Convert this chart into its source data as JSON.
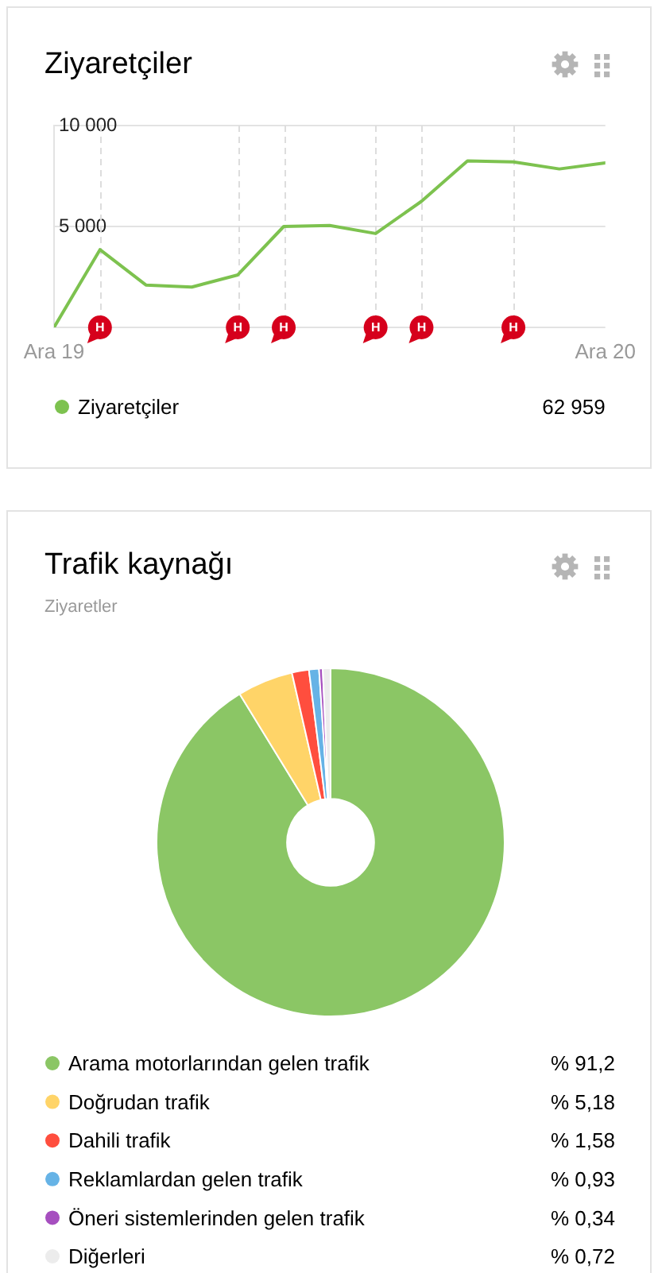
{
  "chart_data": [
    {
      "type": "line",
      "title": "Ziyaretçiler",
      "x": [
        "2019-12",
        "2020-01",
        "2020-02",
        "2020-03",
        "2020-04",
        "2020-05",
        "2020-06",
        "2020-07",
        "2020-08",
        "2020-09",
        "2020-10",
        "2020-11",
        "2020-12"
      ],
      "series": [
        {
          "name": "Ziyaretçiler",
          "color": "#7dc24f",
          "values": [
            0,
            3850,
            2100,
            2000,
            2600,
            5000,
            5050,
            4650,
            6250,
            8250,
            8200,
            7850,
            8150
          ]
        }
      ],
      "xlim": [
        "2019-12",
        "2020-12"
      ],
      "xticks": [
        {
          "value": "2019-12",
          "label": "Ara 19"
        },
        {
          "value": "2020-12",
          "label": "Ara 20"
        }
      ],
      "ylim": [
        0,
        10000
      ],
      "yticks": [
        {
          "value": 0,
          "label": null
        },
        {
          "value": 5000,
          "label": "5 000"
        },
        {
          "value": 10000,
          "label": "10 000"
        }
      ],
      "grid": "y",
      "legend": "bottom",
      "annotations": [
        "62 959"
      ],
      "ref_lines": [
        {
          "axis": "x",
          "value": "2020-01",
          "label": "H",
          "color": "#dddddd",
          "line_style": "dashed"
        },
        {
          "axis": "x",
          "value": "2020-04",
          "label": "H",
          "color": "#dddddd",
          "line_style": "dashed"
        },
        {
          "axis": "x",
          "value": "2020-05",
          "label": "H",
          "color": "#dddddd",
          "line_style": "dashed"
        },
        {
          "axis": "x",
          "value": "2020-07",
          "label": "H",
          "color": "#dddddd",
          "line_style": "dashed"
        },
        {
          "axis": "x",
          "value": "2020-08",
          "label": "H",
          "color": "#dddddd",
          "line_style": "dashed"
        },
        {
          "axis": "x",
          "value": "2020-10",
          "label": "H",
          "color": "#dddddd",
          "line_style": "dashed"
        }
      ]
    },
    {
      "type": "donut",
      "title": "Trafik kaynağı",
      "subtitle": "Ziyaretler",
      "categories": [
        "Arama motorlarından gelen trafik",
        "Doğrudan trafik",
        "Dahili trafik",
        "Reklamlardan gelen trafik",
        "Öneri sistemlerinden gelen trafik",
        "Diğerleri"
      ],
      "values": [
        91.2,
        5.18,
        1.58,
        0.93,
        0.34,
        0.72
      ],
      "colors": [
        "#8bc665",
        "#ffd468",
        "#ff4e3e",
        "#66b3e6",
        "#a64fbf",
        "#ececec"
      ],
      "value_labels": [
        "% 91,2",
        "% 5,18",
        "% 1,58",
        "% 0,93",
        "% 0,34",
        "% 0,72"
      ],
      "legend": "bottom"
    }
  ]
}
